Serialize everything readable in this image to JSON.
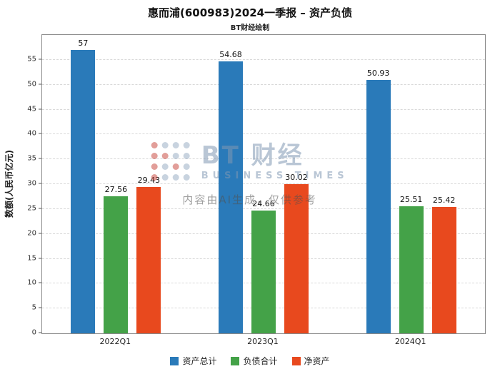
{
  "watermark": {
    "brand": "BT 财经",
    "brand_sub": "BUSINESS TIMES",
    "disclaimer": "内容由AI生成，仅供参考"
  },
  "chart_data": {
    "type": "bar",
    "title": "惠而浦(600983)2024一季报 – 资产负债",
    "subtitle": "BT财经绘制",
    "categories": [
      "2022Q1",
      "2023Q1",
      "2024Q1"
    ],
    "series": [
      {
        "name": "资产总计",
        "color": "#2a7ab9",
        "values": [
          57,
          54.68,
          50.93
        ],
        "labels": [
          "57",
          "54.68",
          "50.93"
        ]
      },
      {
        "name": "负债合计",
        "color": "#44a248",
        "values": [
          27.56,
          24.66,
          25.51
        ],
        "labels": [
          "27.56",
          "24.66",
          "25.51"
        ]
      },
      {
        "name": "净资产",
        "color": "#e8491e",
        "values": [
          29.43,
          30.02,
          25.42
        ],
        "labels": [
          "29.43",
          "30.02",
          "25.42"
        ]
      }
    ],
    "xlabel": "",
    "ylabel": "数额(人民币亿元)",
    "ylim": [
      0,
      60
    ],
    "yticks": [
      0,
      5,
      10,
      15,
      20,
      25,
      30,
      35,
      40,
      45,
      50,
      55
    ],
    "grid": true,
    "legend_position": "bottom"
  }
}
